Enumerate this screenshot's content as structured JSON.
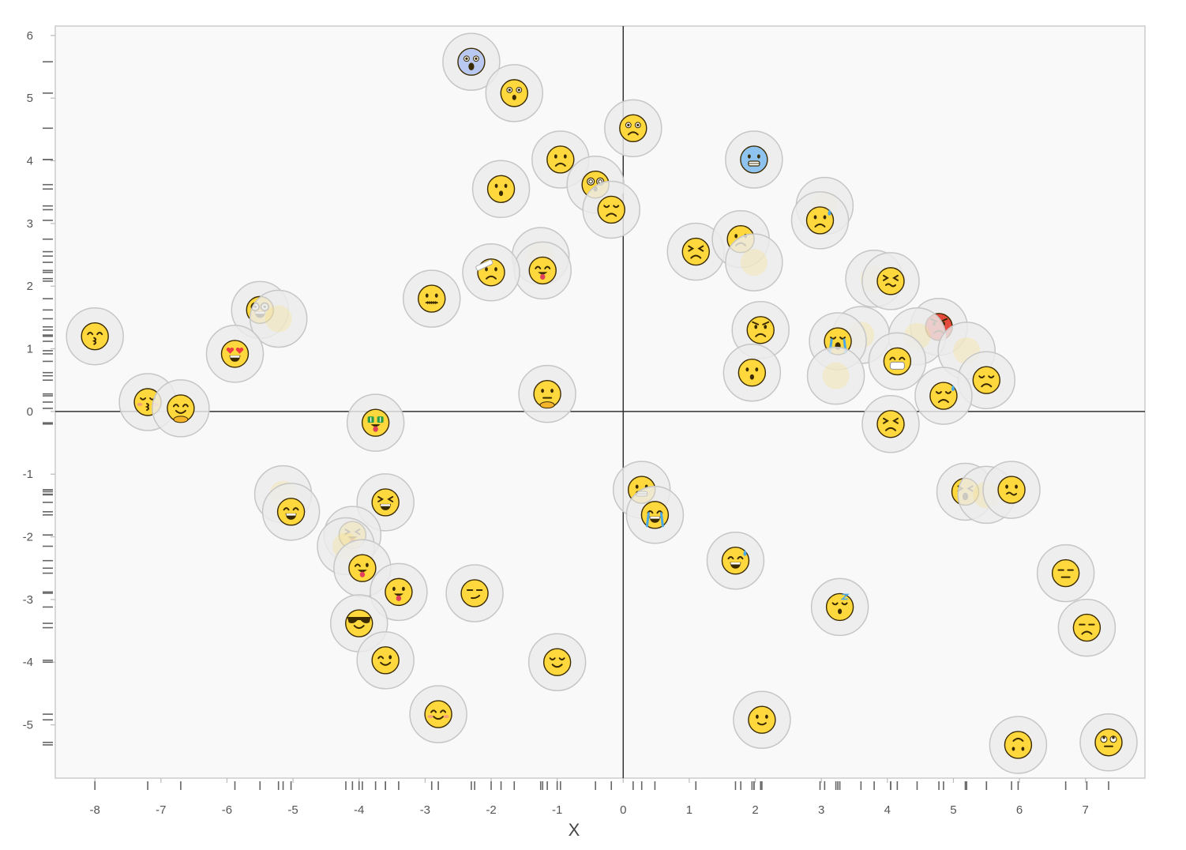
{
  "chart_data": {
    "type": "scatter",
    "title": "",
    "xlabel": "X",
    "ylabel": "",
    "xlim": [
      -8.6,
      7.9
    ],
    "ylim": [
      -5.85,
      6.15
    ],
    "x_ticks": [
      -8,
      -7,
      -6,
      -5,
      -4,
      -3,
      -2,
      -1,
      0,
      1,
      2,
      3,
      4,
      5,
      6,
      7
    ],
    "y_ticks": [
      -5,
      -4,
      -3,
      -2,
      -1,
      0,
      1,
      2,
      3,
      4,
      5,
      6
    ],
    "reference_lines": {
      "x": 0,
      "y": 0
    },
    "grid": false,
    "rug": true,
    "marker": "emoji",
    "points": [
      {
        "x": -2.3,
        "y": 5.58,
        "emoji": "face-screaming-in-fear"
      },
      {
        "x": -1.65,
        "y": 5.08,
        "emoji": "astonished-face"
      },
      {
        "x": 0.15,
        "y": 4.52,
        "emoji": "anguished-face"
      },
      {
        "x": -0.95,
        "y": 4.02,
        "emoji": "frowning-face"
      },
      {
        "x": -1.85,
        "y": 3.55,
        "emoji": "face-with-open-mouth"
      },
      {
        "x": -0.42,
        "y": 3.62,
        "emoji": "dizzy-face"
      },
      {
        "x": -0.18,
        "y": 3.22,
        "emoji": "weary-face"
      },
      {
        "x": 1.98,
        "y": 4.02,
        "emoji": "cold-face"
      },
      {
        "x": 3.05,
        "y": 3.28,
        "emoji": "face-blank"
      },
      {
        "x": 2.98,
        "y": 3.05,
        "emoji": "sad-but-relieved-face"
      },
      {
        "x": 1.1,
        "y": 2.55,
        "emoji": "persevering-face"
      },
      {
        "x": 1.78,
        "y": 2.75,
        "emoji": "worried-face"
      },
      {
        "x": 1.98,
        "y": 2.38,
        "emoji": "face-blank"
      },
      {
        "x": 3.8,
        "y": 2.12,
        "emoji": "face-blank"
      },
      {
        "x": 4.05,
        "y": 2.08,
        "emoji": "confounded-face"
      },
      {
        "x": -1.25,
        "y": 2.48,
        "emoji": "face-blank"
      },
      {
        "x": -1.22,
        "y": 2.25,
        "emoji": "face-savoring-food"
      },
      {
        "x": -2.0,
        "y": 2.22,
        "emoji": "face-with-head-bandage"
      },
      {
        "x": -2.9,
        "y": 1.8,
        "emoji": "zipper-mouth-face"
      },
      {
        "x": -5.5,
        "y": 1.62,
        "emoji": "nerd-face"
      },
      {
        "x": -5.22,
        "y": 1.48,
        "emoji": "face-blank"
      },
      {
        "x": -8.0,
        "y": 1.2,
        "emoji": "kissing-face-with-smiling-eyes"
      },
      {
        "x": -5.88,
        "y": 0.92,
        "emoji": "smiling-face-with-heart-eyes"
      },
      {
        "x": 2.08,
        "y": 1.3,
        "emoji": "angry-face"
      },
      {
        "x": 1.95,
        "y": 0.62,
        "emoji": "hushed-face"
      },
      {
        "x": 3.6,
        "y": 1.22,
        "emoji": "face-blank"
      },
      {
        "x": 3.25,
        "y": 1.12,
        "emoji": "loudly-crying-face"
      },
      {
        "x": 3.22,
        "y": 0.57,
        "emoji": "face-blank"
      },
      {
        "x": 4.78,
        "y": 1.35,
        "emoji": "pouting-face"
      },
      {
        "x": 4.45,
        "y": 1.2,
        "emoji": "face-blank"
      },
      {
        "x": 5.2,
        "y": 0.97,
        "emoji": "face-blank"
      },
      {
        "x": 4.15,
        "y": 0.8,
        "emoji": "face-with-medical-mask"
      },
      {
        "x": 5.5,
        "y": 0.5,
        "emoji": "pensive-face"
      },
      {
        "x": 4.85,
        "y": 0.25,
        "emoji": "downcast-face-with-sweat"
      },
      {
        "x": 4.05,
        "y": -0.2,
        "emoji": "face-with-steam-from-nose"
      },
      {
        "x": -7.2,
        "y": 0.15,
        "emoji": "kissing-face-with-closed-eyes"
      },
      {
        "x": -6.7,
        "y": 0.05,
        "emoji": "hugging-face"
      },
      {
        "x": -1.15,
        "y": 0.28,
        "emoji": "thinking-face"
      },
      {
        "x": -3.75,
        "y": -0.18,
        "emoji": "money-mouth-face"
      },
      {
        "x": -5.15,
        "y": -1.32,
        "emoji": "face-blank"
      },
      {
        "x": -5.03,
        "y": -1.6,
        "emoji": "grinning-face-with-smiling-eyes"
      },
      {
        "x": -3.6,
        "y": -1.45,
        "emoji": "grinning-squinting-face"
      },
      {
        "x": -4.1,
        "y": -1.97,
        "emoji": "squinting-face-with-tongue"
      },
      {
        "x": -4.2,
        "y": -2.15,
        "emoji": "face-blank"
      },
      {
        "x": -3.95,
        "y": -2.5,
        "emoji": "winking-face-with-tongue"
      },
      {
        "x": -3.4,
        "y": -2.88,
        "emoji": "face-with-tongue"
      },
      {
        "x": -2.25,
        "y": -2.9,
        "emoji": "smirking-face"
      },
      {
        "x": -4.0,
        "y": -3.38,
        "emoji": "smiling-face-with-sunglasses"
      },
      {
        "x": -3.6,
        "y": -3.97,
        "emoji": "winking-face"
      },
      {
        "x": -1.0,
        "y": -4.0,
        "emoji": "relieved-face"
      },
      {
        "x": -2.8,
        "y": -4.83,
        "emoji": "smiling-face-with-smiling-eyes"
      },
      {
        "x": 0.28,
        "y": -1.25,
        "emoji": "grimacing-face"
      },
      {
        "x": 0.48,
        "y": -1.65,
        "emoji": "face-with-tears-of-joy"
      },
      {
        "x": 1.7,
        "y": -2.38,
        "emoji": "grinning-face-with-sweat"
      },
      {
        "x": 3.28,
        "y": -3.12,
        "emoji": "sleeping-face"
      },
      {
        "x": 2.1,
        "y": -4.92,
        "emoji": "slightly-smiling-face"
      },
      {
        "x": 5.18,
        "y": -1.28,
        "emoji": "tired-face"
      },
      {
        "x": 5.5,
        "y": -1.33,
        "emoji": "face-blank"
      },
      {
        "x": 5.88,
        "y": -1.25,
        "emoji": "confused-face"
      },
      {
        "x": 6.7,
        "y": -2.58,
        "emoji": "expressionless-face"
      },
      {
        "x": 7.02,
        "y": -3.45,
        "emoji": "unamused-face"
      },
      {
        "x": 5.98,
        "y": -5.32,
        "emoji": "upside-down-face"
      },
      {
        "x": 7.35,
        "y": -5.28,
        "emoji": "face-with-rolling-eyes"
      }
    ]
  },
  "colors": {
    "panel_background": "#f9f9f9",
    "panel_border": "#cccccc",
    "reference_line": "#333333",
    "rug": "#666666",
    "bubble": "#ececec",
    "face": "#ffd83d"
  }
}
